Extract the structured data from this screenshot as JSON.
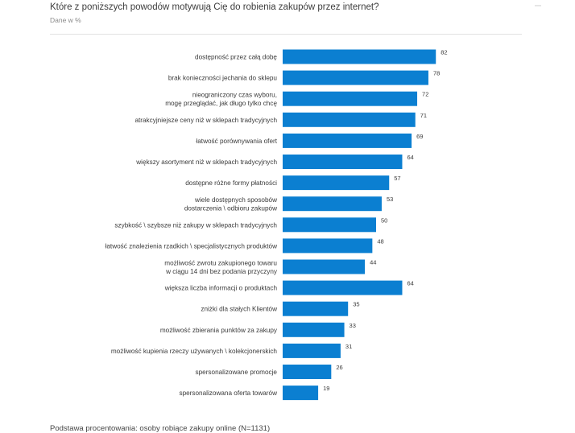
{
  "header": {
    "title": "Które z poniższych powodów motywują Cię do robienia zakupów przez internet?",
    "subtitle": "Dane w %"
  },
  "footer": {
    "note": "Podstawa procentowania: osoby robiące zakupy online (N=1131)"
  },
  "colors": {
    "bar": "#0b7fd1"
  },
  "chart_data": {
    "type": "bar",
    "orientation": "horizontal",
    "title": "Które z poniższych powodów motywują Cię do robienia zakupów przez internet?",
    "subtitle": "Dane w %",
    "categories": [
      [
        "dostępność przez całą dobę"
      ],
      [
        "brak konieczności jechania do sklepu"
      ],
      [
        "nieograniczony czas wyboru,",
        "mogę przeglądać, jak długo tylko chcę"
      ],
      [
        "atrakcyjniejsze ceny niż w sklepach tradycyjnych"
      ],
      [
        "łatwość porównywania ofert"
      ],
      [
        "większy asortyment niż w sklepach tradycyjnych"
      ],
      [
        "dostępne różne formy płatności"
      ],
      [
        "wiele dostępnych sposobów",
        "dostarczenia \\ odbioru zakupów"
      ],
      [
        "szybkość \\ szybsze niż zakupy w sklepach tradycyjnych"
      ],
      [
        "łatwość znalezienia rzadkich \\ specjalistycznych produktów"
      ],
      [
        "możliwość zwrotu zakupionego towaru",
        "w ciągu 14 dni bez podania przyczyny"
      ],
      [
        "większa liczba informacji o produktach"
      ],
      [
        "zniżki dla stałych Klientów"
      ],
      [
        "możliwość zbierania punktów za zakupy"
      ],
      [
        "możliwość kupienia rzeczy używanych \\ kolekcjonerskich"
      ],
      [
        "spersonalizowane promocje"
      ],
      [
        "spersonalizowana oferta towarów"
      ]
    ],
    "values": [
      82,
      78,
      72,
      71,
      69,
      64,
      57,
      53,
      50,
      48,
      44,
      64,
      35,
      33,
      31,
      26,
      19
    ],
    "xlim": [
      0,
      100
    ],
    "grid": false,
    "legend": "none"
  }
}
